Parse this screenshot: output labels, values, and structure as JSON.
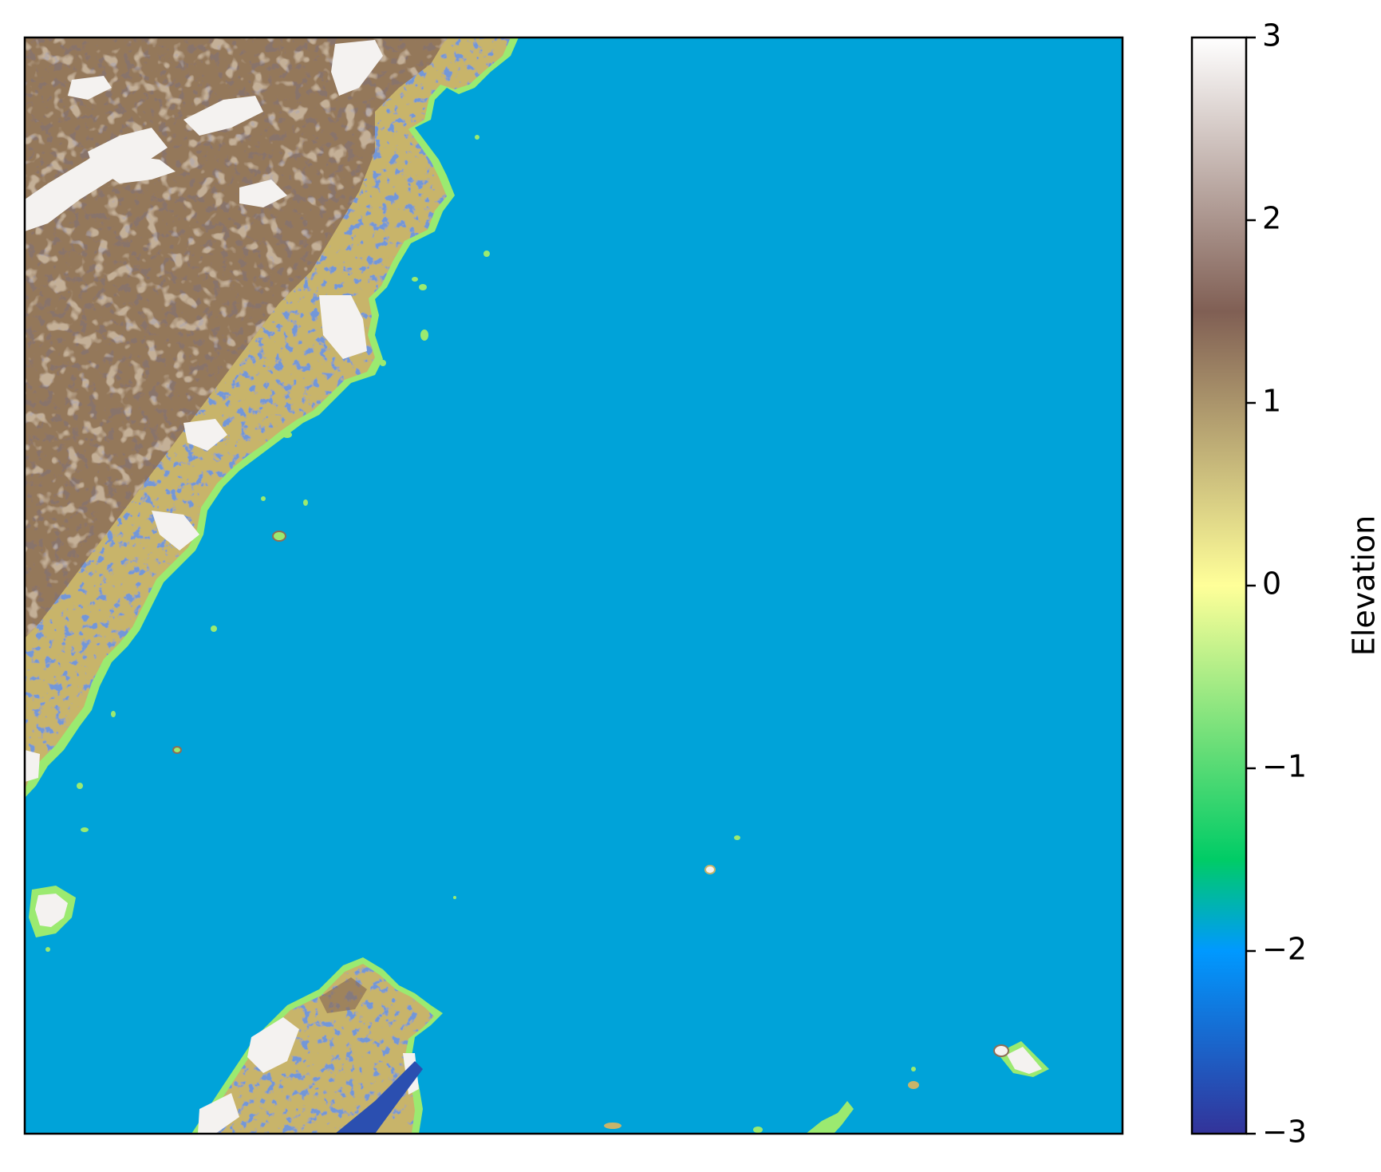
{
  "chart_data": {
    "type": "heatmap",
    "title": "",
    "xlabel": "",
    "ylabel": "",
    "xticks": [],
    "yticks": [],
    "colorbar": {
      "label": "Elevation",
      "colormap": "terrain",
      "range": [
        -3,
        3
      ],
      "ticks": [
        3,
        2,
        1,
        0,
        -1,
        -2,
        -3
      ],
      "tick_labels": [
        "3",
        "2",
        "1",
        "0",
        "−1",
        "−2",
        "−3"
      ],
      "stops": [
        {
          "value": -3.0,
          "color": "#333399"
        },
        {
          "value": -2.0,
          "color": "#0099ff"
        },
        {
          "value": -1.5,
          "color": "#00cc66"
        },
        {
          "value": -0.9,
          "color": "#66dd77"
        },
        {
          "value": 0.0,
          "color": "#ffff99"
        },
        {
          "value": 1.5,
          "color": "#805f54"
        },
        {
          "value": 3.0,
          "color": "#ffffff"
        }
      ]
    },
    "map_colors": {
      "sea": "#00a3d9",
      "land_low": "#c8b46a",
      "land_mid": "#8c6e58",
      "land_high": "#f4f2f0",
      "valley": "#2b4fb0",
      "coast": "#9bea70"
    }
  }
}
